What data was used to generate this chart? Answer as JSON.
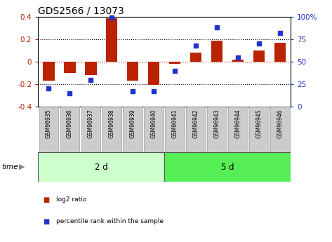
{
  "title": "GDS2566 / 13073",
  "samples": [
    "GSM96935",
    "GSM96936",
    "GSM96937",
    "GSM96938",
    "GSM96939",
    "GSM96940",
    "GSM96941",
    "GSM96942",
    "GSM96943",
    "GSM96944",
    "GSM96945",
    "GSM96946"
  ],
  "log2_ratio": [
    -0.17,
    -0.1,
    -0.12,
    0.39,
    -0.17,
    -0.21,
    -0.02,
    0.08,
    0.19,
    0.02,
    0.1,
    0.17
  ],
  "percentile_rank": [
    20,
    15,
    30,
    99,
    17,
    17,
    40,
    68,
    88,
    55,
    70,
    82
  ],
  "group1_count": 6,
  "group2_count": 6,
  "group1_label": "2 d",
  "group2_label": "5 d",
  "time_label": "time",
  "bar_color": "#bb2200",
  "dot_color": "#2233cc",
  "ylim": [
    -0.4,
    0.4
  ],
  "y2lim": [
    0,
    100
  ],
  "y_ticks": [
    -0.4,
    -0.2,
    0.0,
    0.2,
    0.4
  ],
  "y2_ticks": [
    0,
    25,
    50,
    75,
    100
  ],
  "y2_tick_labels": [
    "0",
    "25",
    "50",
    "75",
    "100%"
  ],
  "dotted_lines_black": [
    0.2,
    -0.2
  ],
  "dotted_line_red": 0.0,
  "legend_bar_label": "log2 ratio",
  "legend_dot_label": "percentile rank within the sample",
  "group1_bg": "#ccffcc",
  "group2_bg": "#55ee55",
  "tick_bg": "#cccccc",
  "bar_width": 0.55
}
